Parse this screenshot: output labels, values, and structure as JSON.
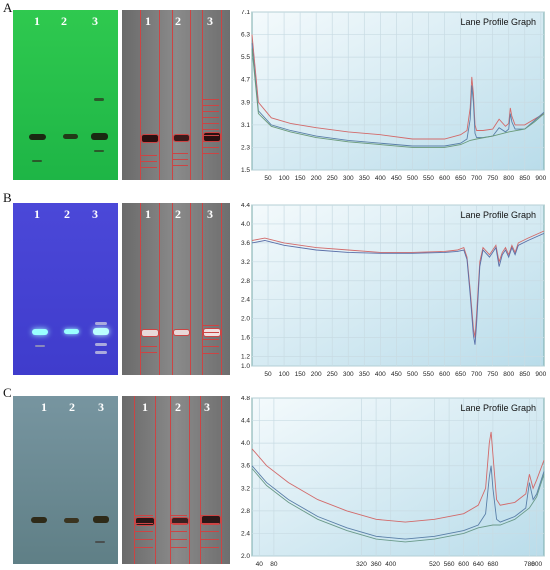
{
  "panels": [
    {
      "label": "A",
      "lanes": [
        "1",
        "2",
        "3"
      ],
      "plate_color": "#22c14a",
      "chart_data": {
        "type": "line",
        "title": "Lane Profile Graph",
        "xlim": [
          0,
          910
        ],
        "ylim": [
          1.5,
          7.1
        ],
        "xticks": [
          50,
          100,
          150,
          200,
          250,
          300,
          350,
          400,
          450,
          500,
          550,
          600,
          650,
          700,
          750,
          800,
          850,
          900
        ],
        "yticks": [
          1.5,
          2.3,
          3.1,
          3.9,
          4.7,
          5.5,
          6.3,
          7.1
        ],
        "series": [
          {
            "color": "#d26a6a",
            "x": [
              0,
              20,
              60,
              120,
              200,
              300,
              400,
              500,
              600,
              650,
              670,
              680,
              685,
              690,
              695,
              700,
              720,
              750,
              770,
              790,
              800,
              805,
              810,
              820,
              850,
              880,
              910
            ],
            "y": [
              6.3,
              3.9,
              3.35,
              3.15,
              3.0,
              2.85,
              2.75,
              2.6,
              2.6,
              2.75,
              2.9,
              3.7,
              4.8,
              4.2,
              3.1,
              2.9,
              2.9,
              2.95,
              3.3,
              3.05,
              3.15,
              3.7,
              3.4,
              3.1,
              3.1,
              3.3,
              3.5
            ]
          },
          {
            "color": "#5a7fa8",
            "x": [
              0,
              20,
              60,
              120,
              200,
              300,
              400,
              500,
              600,
              650,
              670,
              680,
              685,
              690,
              695,
              700,
              720,
              750,
              770,
              790,
              800,
              805,
              810,
              820,
              850,
              880,
              910
            ],
            "y": [
              6.0,
              3.6,
              3.1,
              2.9,
              2.7,
              2.55,
              2.45,
              2.35,
              2.35,
              2.45,
              2.6,
              3.3,
              4.5,
              3.9,
              2.8,
              2.65,
              2.65,
              2.7,
              3.0,
              2.85,
              2.95,
              3.5,
              3.2,
              2.95,
              2.95,
              3.25,
              3.55
            ]
          },
          {
            "color": "#6a9a7a",
            "x": [
              0,
              20,
              60,
              120,
              200,
              300,
              400,
              500,
              600,
              650,
              680,
              700,
              750,
              800,
              850,
              880,
              910
            ],
            "y": [
              5.8,
              3.5,
              3.05,
              2.85,
              2.65,
              2.5,
              2.4,
              2.3,
              2.3,
              2.4,
              2.55,
              2.6,
              2.7,
              2.85,
              2.95,
              3.2,
              3.5
            ]
          }
        ]
      }
    },
    {
      "label": "B",
      "lanes": [
        "1",
        "2",
        "3"
      ],
      "plate_color": "#4b4ad8",
      "chart_data": {
        "type": "line",
        "title": "Lane Profile Graph",
        "xlim": [
          0,
          910
        ],
        "ylim": [
          1.0,
          4.4
        ],
        "xticks": [
          50,
          100,
          150,
          200,
          250,
          300,
          350,
          400,
          450,
          500,
          550,
          600,
          650,
          700,
          750,
          800,
          850,
          900
        ],
        "yticks": [
          1.0,
          1.2,
          1.6,
          2.0,
          2.4,
          2.8,
          3.2,
          3.6,
          4.0,
          4.4
        ],
        "series": [
          {
            "color": "#d26a6a",
            "x": [
              0,
              40,
              100,
              200,
              300,
              400,
              500,
              600,
              640,
              660,
              670,
              680,
              690,
              695,
              700,
              710,
              720,
              740,
              760,
              770,
              780,
              790,
              800,
              810,
              820,
              830,
              860,
              910
            ],
            "y": [
              3.65,
              3.7,
              3.6,
              3.5,
              3.45,
              3.4,
              3.4,
              3.42,
              3.45,
              3.5,
              3.3,
              2.6,
              1.8,
              1.6,
              2.1,
              3.2,
              3.5,
              3.35,
              3.55,
              3.2,
              3.4,
              3.5,
              3.35,
              3.55,
              3.4,
              3.6,
              3.7,
              3.85
            ]
          },
          {
            "color": "#5a6fa8",
            "x": [
              0,
              40,
              100,
              200,
              300,
              400,
              500,
              600,
              640,
              660,
              670,
              680,
              690,
              695,
              700,
              710,
              720,
              740,
              760,
              770,
              780,
              790,
              800,
              810,
              820,
              830,
              860,
              910
            ],
            "y": [
              3.6,
              3.65,
              3.55,
              3.45,
              3.4,
              3.38,
              3.38,
              3.4,
              3.42,
              3.45,
              3.25,
              2.5,
              1.65,
              1.45,
              1.9,
              3.1,
              3.45,
              3.3,
              3.5,
              3.1,
              3.35,
              3.45,
              3.3,
              3.5,
              3.35,
              3.55,
              3.65,
              3.8
            ]
          }
        ]
      }
    },
    {
      "label": "C",
      "lanes": [
        "1",
        "2",
        "3"
      ],
      "plate_color": "#6f8f96",
      "chart_data": {
        "type": "line",
        "title": "Lane Profile Graph",
        "xlim": [
          20,
          820
        ],
        "ylim": [
          2.0,
          4.8
        ],
        "xticks": [
          40,
          80,
          320,
          360,
          400,
          520,
          560,
          600,
          640,
          680,
          780,
          800
        ],
        "yticks": [
          2.0,
          2.4,
          2.8,
          3.2,
          3.6,
          4.0,
          4.4,
          4.8
        ],
        "series": [
          {
            "color": "#d26a6a",
            "x": [
              20,
              60,
              120,
              200,
              280,
              360,
              440,
              520,
              600,
              640,
              660,
              670,
              675,
              680,
              690,
              700,
              740,
              770,
              780,
              790,
              800,
              820
            ],
            "y": [
              3.9,
              3.6,
              3.3,
              3.0,
              2.8,
              2.65,
              2.6,
              2.65,
              2.75,
              2.9,
              3.2,
              4.0,
              4.2,
              3.8,
              3.0,
              2.9,
              2.95,
              3.1,
              3.45,
              3.2,
              3.35,
              3.7
            ]
          },
          {
            "color": "#5a7fa8",
            "x": [
              20,
              60,
              120,
              200,
              280,
              360,
              440,
              520,
              600,
              640,
              660,
              670,
              675,
              680,
              690,
              700,
              740,
              770,
              780,
              790,
              800,
              820
            ],
            "y": [
              3.6,
              3.3,
              3.0,
              2.7,
              2.5,
              2.35,
              2.3,
              2.35,
              2.45,
              2.55,
              2.75,
              3.4,
              3.6,
              3.2,
              2.65,
              2.6,
              2.7,
              2.85,
              3.3,
              3.0,
              3.1,
              3.5
            ]
          },
          {
            "color": "#6a9a8a",
            "x": [
              20,
              60,
              120,
              200,
              280,
              360,
              440,
              520,
              600,
              640,
              680,
              700,
              740,
              780,
              800,
              820
            ],
            "y": [
              3.55,
              3.25,
              2.95,
              2.65,
              2.45,
              2.3,
              2.25,
              2.3,
              2.4,
              2.5,
              2.55,
              2.55,
              2.65,
              2.85,
              3.05,
              3.45
            ]
          }
        ]
      }
    }
  ]
}
